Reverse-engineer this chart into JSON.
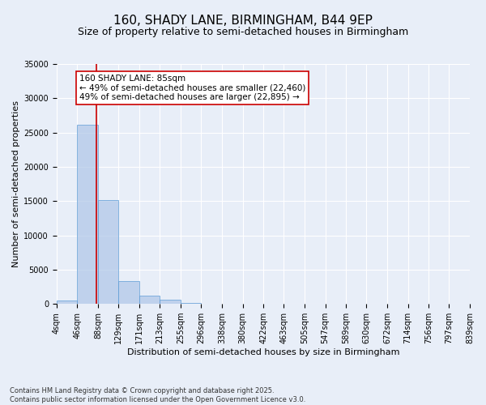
{
  "title": "160, SHADY LANE, BIRMINGHAM, B44 9EP",
  "subtitle": "Size of property relative to semi-detached houses in Birmingham",
  "xlabel": "Distribution of semi-detached houses by size in Birmingham",
  "ylabel": "Number of semi-detached properties",
  "footnote": "Contains HM Land Registry data © Crown copyright and database right 2025.\nContains public sector information licensed under the Open Government Licence v3.0.",
  "bin_edges": [
    4,
    46,
    88,
    129,
    171,
    213,
    255,
    296,
    338,
    380,
    422,
    463,
    505,
    547,
    589,
    630,
    672,
    714,
    756,
    797,
    839
  ],
  "bin_counts": [
    500,
    26100,
    15200,
    3350,
    1150,
    620,
    200,
    80,
    40,
    20,
    15,
    10,
    8,
    5,
    4,
    3,
    2,
    1,
    1,
    1
  ],
  "bar_color": "#aec6e8",
  "bar_edge_color": "#5b9bd5",
  "bar_alpha": 0.7,
  "red_line_x": 85,
  "red_line_color": "#cc0000",
  "annotation_text": "160 SHADY LANE: 85sqm\n← 49% of semi-detached houses are smaller (22,460)\n49% of semi-detached houses are larger (22,895) →",
  "annotation_box_color": "#ffffff",
  "annotation_box_edge": "#cc0000",
  "background_color": "#e8eef8",
  "ylim": [
    0,
    35000
  ],
  "yticks": [
    0,
    5000,
    10000,
    15000,
    20000,
    25000,
    30000,
    35000
  ],
  "title_fontsize": 11,
  "subtitle_fontsize": 9,
  "axis_label_fontsize": 8,
  "tick_fontsize": 7,
  "annotation_fontsize": 7.5
}
